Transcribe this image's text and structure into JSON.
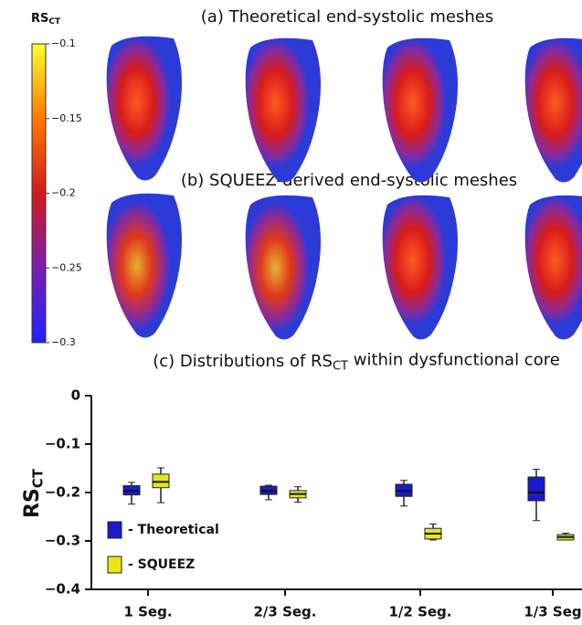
{
  "panel_titles": [
    "(a) Theoretical end-systolic meshes",
    "(b) SQUEEZ-derived end-systolic meshes"
  ],
  "chart_data": [
    {
      "type": "colorbar",
      "title_parts": [
        "RS",
        "CT"
      ],
      "colors": [
        "#2020ff",
        "#7a1fb0",
        "#d01a1a",
        "#ff7a00",
        "#ffff30"
      ],
      "ylim": [
        -0.3,
        -0.1
      ],
      "yticks": [
        {
          "value": -0.1,
          "label": "−0.1"
        },
        {
          "value": -0.15,
          "label": "−0.15"
        },
        {
          "value": -0.2,
          "label": "−0.2"
        },
        {
          "value": -0.25,
          "label": "−0.25"
        },
        {
          "value": -0.3,
          "label": "−0.3"
        }
      ]
    },
    {
      "type": "box",
      "title_parts": [
        "(c) Distributions of RS",
        "CT",
        " within dysfunctional core"
      ],
      "ylabel_parts": [
        "RS",
        "CT"
      ],
      "categories": [
        "1 Seg.",
        "2/3 Seg.",
        "1/2 Seg.",
        "1/3 Seg"
      ],
      "ylim": [
        -0.4,
        0
      ],
      "yticks": [
        0,
        {
          "value": -0.1,
          "label": "−0.1"
        },
        {
          "value": -0.2,
          "label": "−0.2"
        },
        {
          "value": -0.3,
          "label": "−0.3"
        },
        {
          "value": -0.4,
          "label": "−0.4"
        }
      ],
      "series": [
        {
          "name": "- Theoretical",
          "color": "#1a1acc",
          "min": [
            -0.224,
            -0.215,
            -0.228,
            -0.258
          ],
          "q1": [
            -0.205,
            -0.204,
            -0.208,
            -0.217
          ],
          "median": [
            -0.197,
            -0.197,
            -0.197,
            -0.2
          ],
          "q3": [
            -0.186,
            -0.187,
            -0.183,
            -0.168
          ],
          "max": [
            -0.179,
            -0.185,
            -0.175,
            -0.152
          ]
        },
        {
          "name": "- SQUEEZ",
          "color": "#e6e619",
          "min": [
            -0.221,
            -0.22,
            -0.298,
            -0.298
          ],
          "q1": [
            -0.19,
            -0.211,
            -0.296,
            -0.298
          ],
          "median": [
            -0.178,
            -0.203,
            -0.285,
            -0.292
          ],
          "q3": [
            -0.162,
            -0.196,
            -0.274,
            -0.287
          ],
          "max": [
            -0.149,
            -0.188,
            -0.265,
            -0.284
          ]
        }
      ]
    }
  ]
}
